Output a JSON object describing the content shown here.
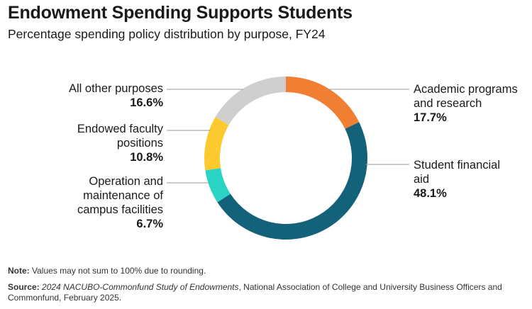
{
  "header": {
    "title": "Endowment Spending Supports Students",
    "subtitle": "Percentage spending policy distribution by purpose, FY24"
  },
  "chart_data": {
    "type": "pie",
    "donut": true,
    "title": "Endowment Spending Supports Students",
    "subtitle": "Percentage spending policy distribution by purpose, FY24",
    "slices": [
      {
        "label": "Academic programs and research",
        "label_lines": [
          "Academic programs",
          "and research"
        ],
        "value": 17.7,
        "display": "17.7%",
        "color": "#f07f34"
      },
      {
        "label": "Student financial aid",
        "label_lines": [
          "Student financial",
          "aid"
        ],
        "value": 48.1,
        "display": "48.1%",
        "color": "#13627a"
      },
      {
        "label": "Operation and maintenance of campus facilities",
        "label_lines": [
          "Operation and",
          "maintenance of",
          "campus facilities"
        ],
        "value": 6.7,
        "display": "6.7%",
        "color": "#2ad4c4"
      },
      {
        "label": "Endowed faculty positions",
        "label_lines": [
          "Endowed faculty",
          "positions"
        ],
        "value": 10.8,
        "display": "10.8%",
        "color": "#fcca2e"
      },
      {
        "label": "All other purposes",
        "label_lines": [
          "All other purposes"
        ],
        "value": 16.6,
        "display": "16.6%",
        "color": "#cfcfcf"
      }
    ]
  },
  "footer": {
    "note_label": "Note:",
    "note_text": "Values may not sum to 100% due to rounding.",
    "source_label": "Source:",
    "source_title": "2024 NACUBO-Commonfund Study of Endowments",
    "source_text": ", National Association of College and University Business Officers and Commonfund, February 2025."
  }
}
